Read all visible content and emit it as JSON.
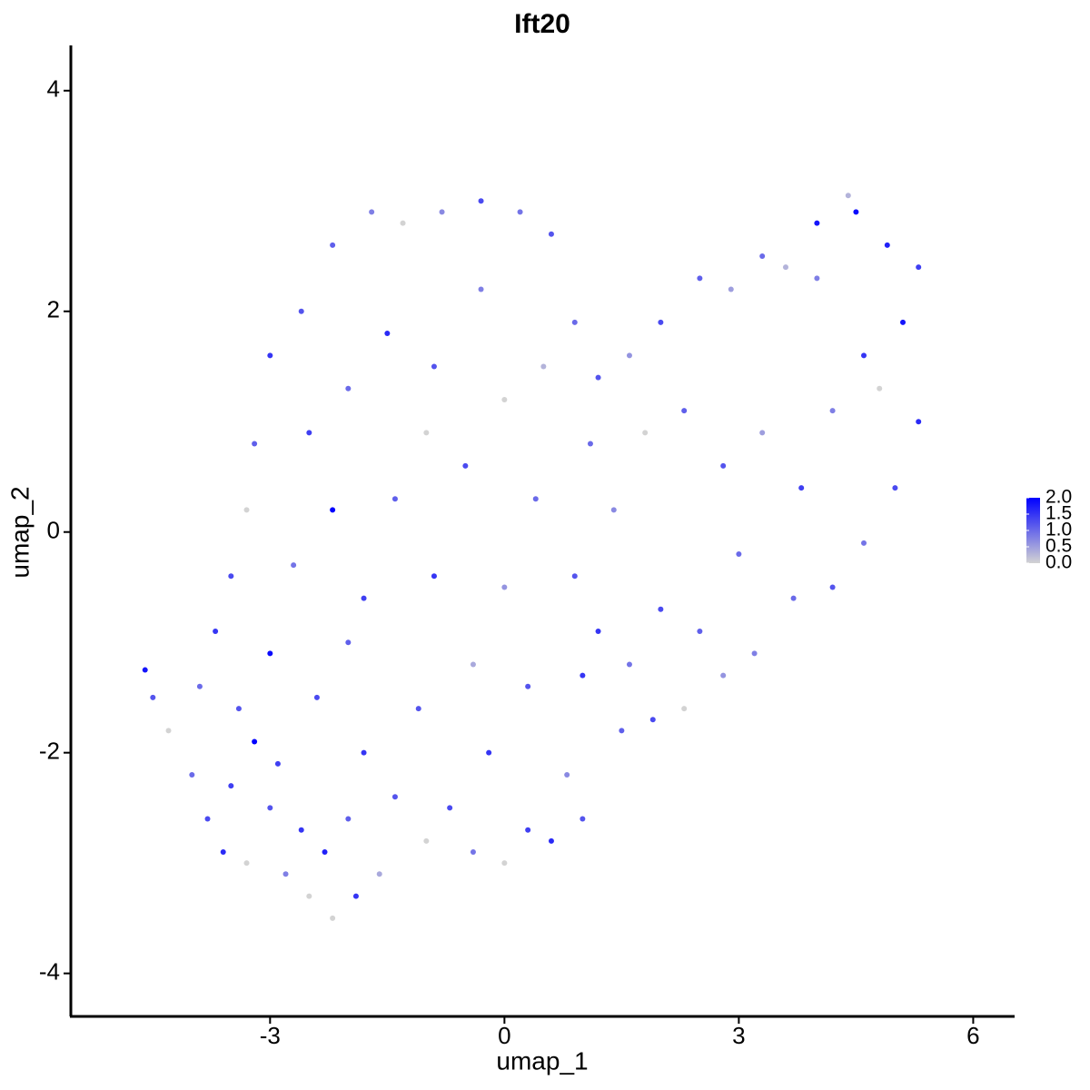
{
  "chart_data": {
    "type": "scatter",
    "title": "Ift20",
    "x_label": "umap_1",
    "y_label": "umap_2",
    "xlim": [
      -5.55,
      6.53
    ],
    "xticks": [
      -3,
      0,
      3,
      6
    ],
    "ylim": [
      -4.39,
      4.41
    ],
    "yticks": [
      -4,
      -2,
      0,
      2,
      4
    ],
    "colorbar": {
      "lim": [
        0,
        2
      ],
      "colors": [
        "#d3d3d3",
        "#0000ff"
      ],
      "ticks": [
        {
          "value": 0,
          "label": "0.0"
        },
        {
          "value": 0.5,
          "label": "0.5"
        },
        {
          "value": 1,
          "label": "1.0"
        },
        {
          "value": 1.5,
          "label": "1.5"
        },
        {
          "value": 2,
          "label": "2.0"
        }
      ]
    },
    "x": [
      -4.6,
      -4.5,
      -4.3,
      -4.0,
      -3.8,
      -3.6,
      -3.5,
      -3.3,
      -3.2,
      -3.0,
      -2.8,
      -2.6,
      -2.5,
      -2.3,
      -2.2,
      -2.0,
      -1.9,
      -1.6,
      -1.4,
      -1.0,
      -0.7,
      -0.4,
      0.0,
      0.3,
      0.6,
      1.0,
      0.8,
      1.0,
      1.5,
      1.9,
      2.3,
      2.8,
      3.2,
      3.7,
      4.2,
      4.6,
      5.0,
      5.3,
      5.1,
      5.3,
      4.9,
      4.5,
      4.4,
      4.0,
      3.6,
      3.3,
      2.9,
      2.5,
      2.0,
      1.6,
      1.2,
      0.9,
      0.6,
      0.2,
      -0.3,
      -0.8,
      -1.3,
      -1.7,
      -2.2,
      -2.6,
      -3.0,
      -3.2,
      -3.3,
      -3.5,
      -3.7,
      -3.9,
      -3.0,
      -2.7,
      -2.2,
      -1.8,
      -1.4,
      -0.9,
      -0.5,
      0.0,
      0.4,
      0.9,
      1.4,
      1.8,
      2.3,
      2.8,
      3.3,
      3.8,
      4.2,
      4.6,
      3.0,
      2.0,
      1.2,
      0.3,
      -0.4,
      -1.1,
      -1.8,
      -2.4,
      -2.9,
      -3.4,
      -2.0,
      -1.5,
      -0.9,
      -0.3,
      0.5,
      1.1,
      -2.5,
      -1.0,
      0.0,
      -0.2,
      -2.0,
      1.6,
      4.0,
      4.8,
      2.5
    ],
    "y": [
      -1.25,
      -1.5,
      -1.8,
      -2.2,
      -2.6,
      -2.9,
      -2.3,
      -3.0,
      -1.9,
      -2.5,
      -3.1,
      -2.7,
      -3.3,
      -2.9,
      -3.5,
      -2.6,
      -3.3,
      -3.1,
      -2.4,
      -2.8,
      -2.5,
      -2.9,
      -3.0,
      -2.7,
      -2.8,
      -2.6,
      -2.2,
      -1.3,
      -1.8,
      -1.7,
      -1.6,
      -1.3,
      -1.1,
      -0.6,
      -0.5,
      -0.1,
      0.4,
      1.0,
      1.9,
      2.4,
      2.6,
      2.9,
      3.05,
      2.3,
      2.4,
      2.5,
      2.2,
      2.3,
      1.9,
      1.6,
      1.4,
      1.9,
      2.7,
      2.9,
      3.0,
      2.9,
      2.8,
      2.9,
      2.6,
      2.0,
      1.6,
      0.8,
      0.2,
      -0.4,
      -0.9,
      -1.4,
      -1.1,
      -0.3,
      0.2,
      -0.6,
      0.3,
      -0.4,
      0.6,
      1.2,
      0.3,
      -0.4,
      0.2,
      0.9,
      1.1,
      0.6,
      0.9,
      0.4,
      1.1,
      1.6,
      -0.2,
      -0.7,
      -0.9,
      -1.4,
      -1.2,
      -1.6,
      -2.0,
      -1.5,
      -2.1,
      -1.6,
      1.3,
      1.8,
      1.5,
      2.2,
      1.5,
      0.8,
      0.9,
      0.9,
      -0.5,
      -2.0,
      -1.0,
      -1.2,
      2.8,
      1.3,
      -0.9
    ],
    "values": [
      1.8,
      1.2,
      0,
      1.0,
      1.3,
      1.6,
      1.4,
      0,
      2.0,
      1.2,
      0.8,
      1.5,
      0,
      1.7,
      0,
      1.1,
      1.5,
      0.4,
      1.2,
      0,
      1.3,
      0.9,
      0,
      1.4,
      1.6,
      1.2,
      0.7,
      1.5,
      1.1,
      1.3,
      0,
      0.6,
      0.8,
      1.0,
      1.2,
      0.9,
      1.3,
      1.6,
      1.8,
      1.4,
      1.7,
      1.9,
      0.3,
      0.8,
      0.3,
      1.0,
      0.5,
      1.1,
      1.3,
      0.6,
      1.2,
      1.0,
      1.2,
      0.9,
      1.3,
      0.7,
      0,
      0.8,
      1.1,
      1.2,
      1.5,
      1.1,
      0,
      1.3,
      1.5,
      1.0,
      1.9,
      0.9,
      2.0,
      1.4,
      1.1,
      1.5,
      1.3,
      0,
      1.0,
      1.2,
      0.7,
      0,
      1.1,
      1.2,
      0.5,
      1.4,
      0.8,
      1.5,
      1.0,
      1.3,
      1.5,
      1.2,
      0.4,
      1.2,
      1.5,
      1.3,
      1.4,
      1.2,
      1.0,
      1.6,
      1.2,
      0.8,
      0.3,
      1.0,
      1.4,
      0,
      0.6,
      1.5,
      1.1,
      0.9,
      1.8,
      0,
      1.1
    ]
  }
}
